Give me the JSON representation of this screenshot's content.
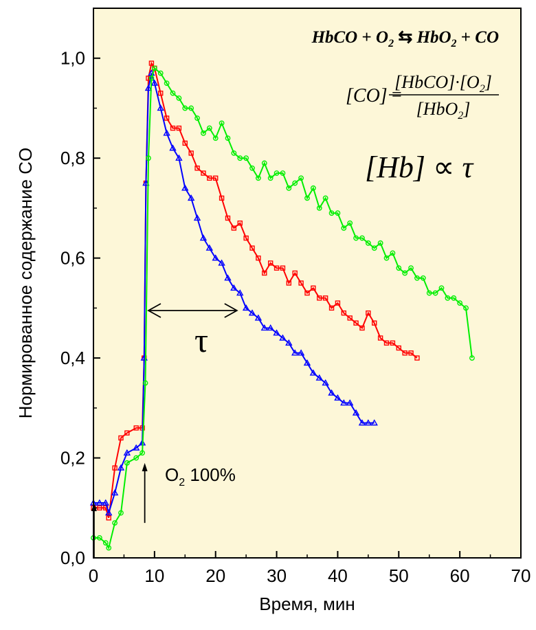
{
  "chart_data": {
    "type": "scatter",
    "xlabel": "Время, мин",
    "ylabel": "Нормированное содержание CO",
    "xlim": [
      0,
      70
    ],
    "ylim": [
      0,
      1.1
    ],
    "x_ticks": [
      "0",
      "10",
      "20",
      "30",
      "40",
      "50",
      "60",
      "70"
    ],
    "y_ticks": [
      "0,0",
      "0,2",
      "0,4",
      "0,6",
      "0,8",
      "1,0"
    ],
    "grid": false,
    "background": "#fdf7d8",
    "series": [
      {
        "color": "#ff0000",
        "marker": "square",
        "x": [
          0,
          1,
          2,
          2.5,
          3.5,
          4.5,
          5.5,
          7,
          8,
          8.3,
          8.6,
          9,
          9.5,
          10,
          11,
          12,
          13,
          14,
          15,
          16,
          17,
          18,
          19,
          20,
          21,
          22,
          23,
          24,
          25,
          26,
          27,
          28,
          29,
          30,
          31,
          32,
          33,
          34,
          35,
          36,
          37,
          38,
          39,
          40,
          41,
          42,
          43,
          44,
          45,
          46,
          47,
          48,
          49,
          50,
          51,
          52,
          53
        ],
        "y": [
          0.1,
          0.1,
          0.1,
          0.08,
          0.18,
          0.24,
          0.25,
          0.26,
          0.26,
          0.4,
          0.75,
          0.96,
          0.99,
          0.98,
          0.93,
          0.88,
          0.86,
          0.86,
          0.83,
          0.81,
          0.78,
          0.77,
          0.76,
          0.76,
          0.72,
          0.68,
          0.66,
          0.67,
          0.64,
          0.62,
          0.6,
          0.57,
          0.59,
          0.58,
          0.58,
          0.55,
          0.57,
          0.55,
          0.53,
          0.54,
          0.52,
          0.52,
          0.5,
          0.51,
          0.49,
          0.48,
          0.47,
          0.46,
          0.49,
          0.47,
          0.44,
          0.43,
          0.43,
          0.42,
          0.41,
          0.41,
          0.4
        ]
      },
      {
        "color": "#0000ff",
        "marker": "triangle",
        "x": [
          0,
          1,
          2,
          2.5,
          3.5,
          4.5,
          5.5,
          7,
          8,
          8.3,
          8.6,
          9,
          9.5,
          10,
          11,
          12,
          13,
          14,
          15,
          16,
          17,
          18,
          19,
          20,
          21,
          22,
          23,
          24,
          25,
          26,
          27,
          28,
          29,
          30,
          31,
          32,
          33,
          34,
          35,
          36,
          37,
          38,
          39,
          40,
          41,
          42,
          43,
          44,
          45,
          46
        ],
        "y": [
          0.11,
          0.11,
          0.11,
          0.09,
          0.13,
          0.18,
          0.21,
          0.22,
          0.23,
          0.4,
          0.75,
          0.94,
          0.97,
          0.95,
          0.9,
          0.85,
          0.82,
          0.8,
          0.74,
          0.72,
          0.68,
          0.64,
          0.62,
          0.6,
          0.59,
          0.56,
          0.54,
          0.53,
          0.5,
          0.49,
          0.48,
          0.46,
          0.46,
          0.45,
          0.44,
          0.43,
          0.41,
          0.41,
          0.39,
          0.37,
          0.36,
          0.35,
          0.33,
          0.32,
          0.31,
          0.31,
          0.29,
          0.27,
          0.27,
          0.27
        ]
      },
      {
        "color": "#00ee00",
        "marker": "circle",
        "x": [
          0,
          1,
          2,
          2.5,
          3.5,
          4.5,
          5.5,
          7,
          8,
          8.5,
          9,
          9.5,
          10,
          11,
          12,
          13,
          14,
          15,
          16,
          17,
          18,
          19,
          20,
          21,
          22,
          23,
          24,
          25,
          26,
          27,
          28,
          29,
          30,
          31,
          32,
          33,
          34,
          35,
          36,
          37,
          38,
          39,
          40,
          41,
          42,
          43,
          44,
          45,
          46,
          47,
          48,
          49,
          50,
          51,
          52,
          53,
          54,
          55,
          56,
          57,
          58,
          59,
          60,
          61,
          62
        ],
        "y": [
          0.04,
          0.04,
          0.03,
          0.02,
          0.07,
          0.09,
          0.19,
          0.2,
          0.21,
          0.35,
          0.8,
          0.96,
          0.98,
          0.97,
          0.95,
          0.93,
          0.92,
          0.9,
          0.9,
          0.88,
          0.85,
          0.86,
          0.84,
          0.87,
          0.84,
          0.81,
          0.8,
          0.8,
          0.78,
          0.76,
          0.79,
          0.76,
          0.77,
          0.77,
          0.74,
          0.75,
          0.76,
          0.72,
          0.74,
          0.7,
          0.72,
          0.69,
          0.69,
          0.66,
          0.67,
          0.64,
          0.64,
          0.63,
          0.62,
          0.63,
          0.6,
          0.61,
          0.58,
          0.57,
          0.58,
          0.56,
          0.56,
          0.53,
          0.53,
          0.54,
          0.52,
          0.52,
          0.51,
          0.5,
          0.4
        ]
      }
    ],
    "annotations": {
      "reaction": {
        "hbco": "HbCO",
        "plus1": "+",
        "o": "O",
        "o_sub": "2",
        "arrows": "⇆",
        "hbo": "HbO",
        "hbo_sub": "2",
        "plus2": "+",
        "co": "CO"
      },
      "equation": {
        "lhs": "[CO]",
        "equals": "=",
        "numerator": "[HbCO]·[O",
        "numerator_sub": "2",
        "numerator_end": "]",
        "denominator": "[HbO",
        "denominator_sub": "2",
        "denominator_end": "]"
      },
      "proportionality": {
        "lhs": "[Hb]",
        "symbol": "∝",
        "rhs": "τ"
      },
      "tau_label": "τ",
      "tau_range": [
        9,
        23.5
      ],
      "tau_y": 0.495,
      "o2_label": "O",
      "o2_sub": "2",
      "o2_suffix": " 100%",
      "o2_arrow_x": 8.4,
      "o2_arrow_range": [
        0.07,
        0.19
      ],
      "start_arrow_x": 0.1,
      "start_arrow_range": [
        0.0,
        0.11
      ]
    }
  }
}
